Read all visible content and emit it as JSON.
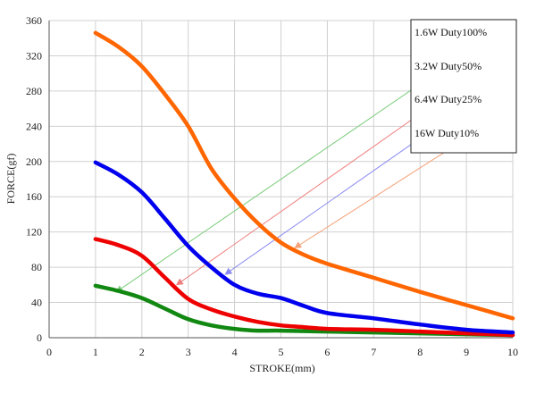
{
  "chart_data": {
    "type": "line",
    "xlabel": "STROKE(mm)",
    "ylabel": "FORCE(gf)",
    "xlim": [
      0,
      10
    ],
    "ylim": [
      0,
      360
    ],
    "xticks": [
      0,
      1,
      2,
      3,
      4,
      5,
      6,
      7,
      8,
      9,
      10
    ],
    "yticks": [
      0,
      40,
      80,
      120,
      160,
      200,
      240,
      280,
      320,
      360
    ],
    "grid": true,
    "legend_position": "top-right",
    "series": [
      {
        "name": "1.6W Duty100%",
        "color": "#ff6600",
        "x": [
          1,
          1.5,
          2,
          2.5,
          3,
          3.5,
          4,
          4.5,
          5,
          5.5,
          6,
          7,
          8,
          9,
          10
        ],
        "y": [
          346,
          330,
          308,
          276,
          240,
          192,
          158,
          130,
          108,
          94,
          84,
          68,
          52,
          37,
          22
        ]
      },
      {
        "name": "3.2W Duty50%",
        "color": "#0000ee",
        "x": [
          1,
          1.5,
          2,
          2.5,
          3,
          3.5,
          4,
          4.5,
          5,
          5.5,
          6,
          7,
          8,
          9,
          10
        ],
        "y": [
          199,
          185,
          165,
          135,
          104,
          80,
          60,
          50,
          45,
          36,
          28,
          22,
          15,
          9,
          6
        ]
      },
      {
        "name": "6.4W Duty25%",
        "color": "#ee0000",
        "x": [
          1,
          1.5,
          2,
          2.5,
          3,
          3.5,
          4,
          4.5,
          5,
          5.5,
          6,
          7,
          8,
          9,
          10
        ],
        "y": [
          112,
          105,
          93,
          68,
          44,
          32,
          24,
          18,
          14,
          12,
          10,
          9,
          7,
          5,
          3
        ]
      },
      {
        "name": "16W Duty10%",
        "color": "#118811",
        "x": [
          1,
          1.5,
          2,
          2.5,
          3,
          3.5,
          4,
          4.5,
          5,
          6,
          7,
          8,
          9,
          10
        ],
        "y": [
          59,
          53,
          45,
          33,
          21,
          14,
          10,
          8,
          8,
          7,
          6,
          5,
          4,
          3
        ]
      }
    ],
    "annotations": [
      {
        "series": 0,
        "color": "#7ccc7c",
        "from": [
          10,
          360
        ],
        "to": [
          1.45,
          52
        ]
      },
      {
        "series": 1,
        "color": "#f07f7f",
        "from": [
          10,
          328
        ],
        "to": [
          2.75,
          60
        ]
      },
      {
        "series": 2,
        "color": "#8a8af2",
        "from": [
          10,
          300
        ],
        "to": [
          3.8,
          72
        ]
      },
      {
        "series": 3,
        "color": "#f5a37a",
        "from": [
          10,
          260
        ],
        "to": [
          5.3,
          102
        ]
      }
    ]
  }
}
